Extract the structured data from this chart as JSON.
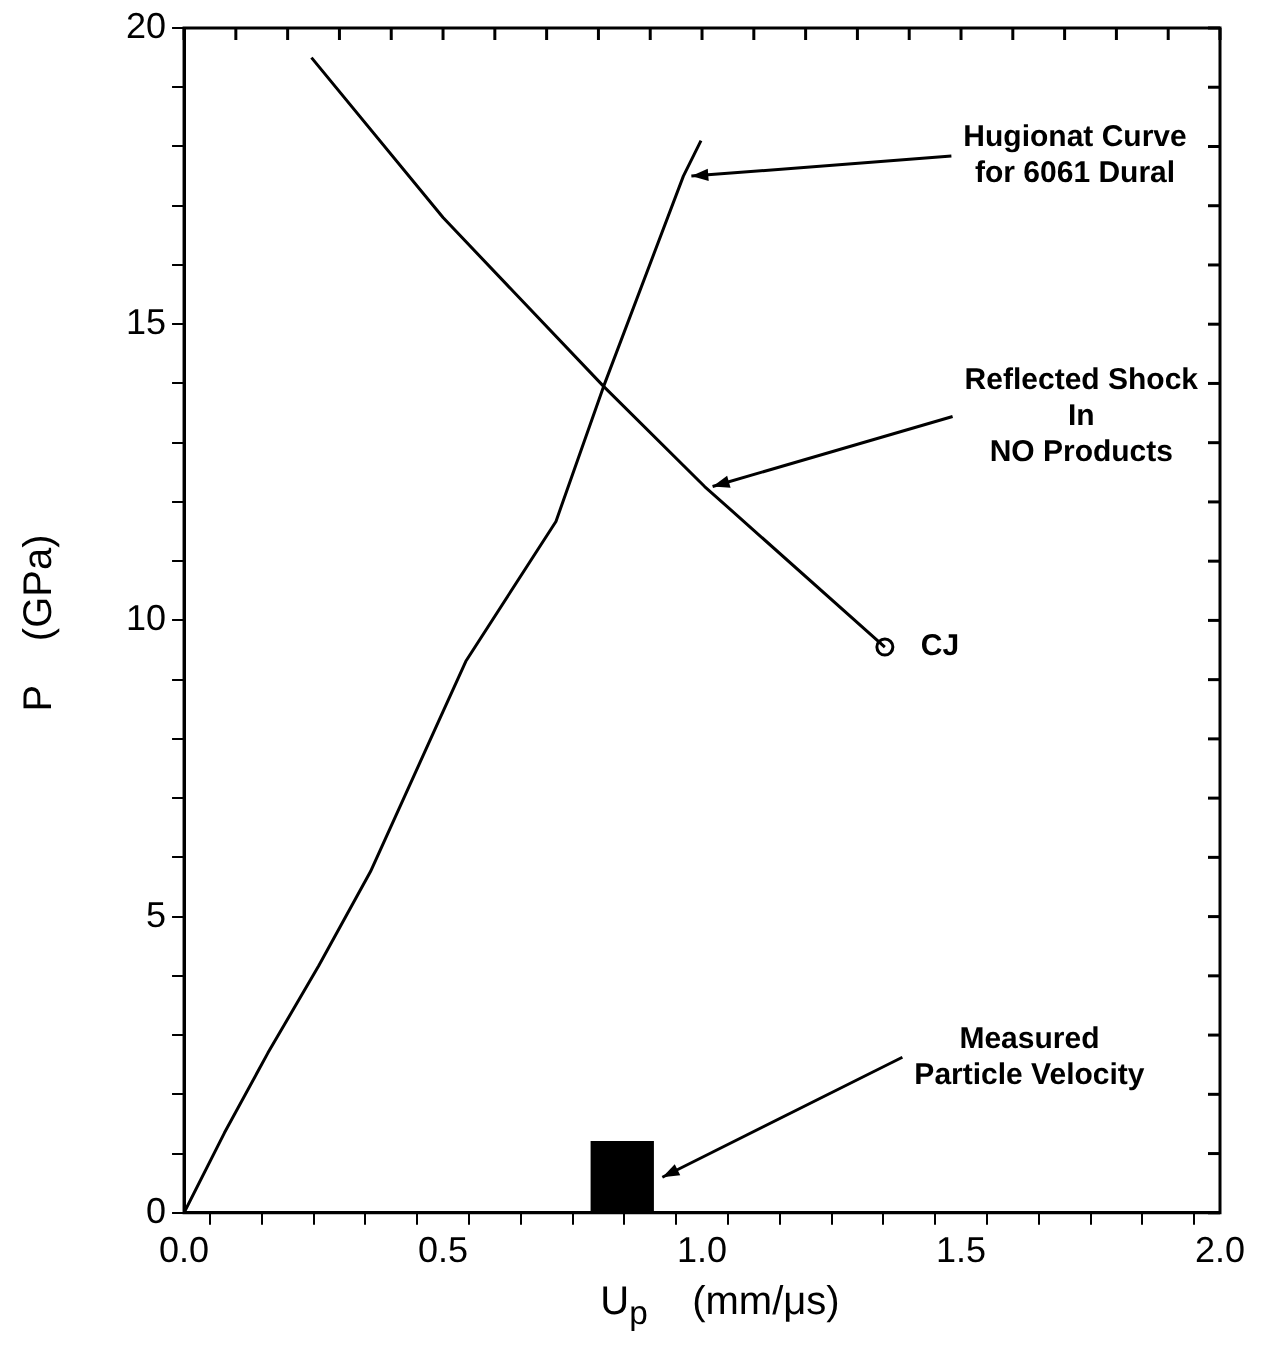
{
  "chart_data": {
    "type": "line",
    "xlabel": "U$_{p}$    (mm/μs)",
    "ylabel": "P    (GPa)",
    "xlim": [
      0,
      2
    ],
    "ylim": [
      0,
      20
    ],
    "xticks": [
      {
        "value": 0,
        "label": "0.0"
      },
      {
        "value": 0.1,
        "label": null
      },
      {
        "value": 0.2,
        "label": null
      },
      {
        "value": 0.3,
        "label": null
      },
      {
        "value": 0.4,
        "label": null
      },
      {
        "value": 0.5,
        "label": "0.5"
      },
      {
        "value": 0.6,
        "label": null
      },
      {
        "value": 0.7,
        "label": null
      },
      {
        "value": 0.8,
        "label": null
      },
      {
        "value": 0.9,
        "label": null
      },
      {
        "value": 1,
        "label": "1.0"
      },
      {
        "value": 1.1,
        "label": null
      },
      {
        "value": 1.2,
        "label": null
      },
      {
        "value": 1.3,
        "label": null
      },
      {
        "value": 1.4,
        "label": null
      },
      {
        "value": 1.5,
        "label": "1.5"
      },
      {
        "value": 1.6,
        "label": null
      },
      {
        "value": 1.7,
        "label": null
      },
      {
        "value": 1.8,
        "label": null
      },
      {
        "value": 1.9,
        "label": null
      },
      {
        "value": 2,
        "label": "2.0"
      }
    ],
    "yticks": [
      0,
      {
        "value": 1,
        "label": null
      },
      {
        "value": 2,
        "label": null
      },
      {
        "value": 3,
        "label": null
      },
      {
        "value": 4,
        "label": null
      },
      5,
      {
        "value": 6,
        "label": null
      },
      {
        "value": 7,
        "label": null
      },
      {
        "value": 8,
        "label": null
      },
      {
        "value": 9,
        "label": null
      },
      10,
      {
        "value": 11,
        "label": null
      },
      {
        "value": 12,
        "label": null
      },
      {
        "value": 13,
        "label": null
      },
      {
        "value": 14,
        "label": null
      },
      15,
      {
        "value": 16,
        "label": null
      },
      {
        "value": 17,
        "label": null
      },
      {
        "value": 18,
        "label": null
      },
      {
        "value": 19,
        "label": null
      },
      20
    ],
    "grid": false,
    "legend": false,
    "marker": "none",
    "line_style": "solid",
    "series": [
      {
        "color": "#000000",
        "x": [
          0,
          0.078,
          0.162,
          0.26,
          0.36,
          0.487,
          0.544,
          0.718,
          0.81,
          0.964,
          0.998
        ],
        "values": [
          0,
          1.35,
          2.7,
          4.17,
          5.76,
          8.21,
          9.31,
          11.67,
          13.95,
          17.5,
          18.1
        ]
      },
      {
        "color": "#000000",
        "x": [
          0.246,
          0.5,
          0.81,
          1.005,
          1.353
        ],
        "values": [
          19.5,
          16.8,
          13.95,
          12.26,
          9.55
        ]
      },
      {
        "type": "scatter",
        "marker": "circle",
        "color": "#000000",
        "x": [
          1.353
        ],
        "values": [
          9.55
        ]
      },
      {
        "type": "bar",
        "color": "#000000",
        "x": [
          0.846
        ],
        "values": [
          1.2
        ]
      }
    ],
    "annotations": [
      {
        "text": "Hugionat Curve\nfor 6061 Dural",
        "x": 0.964,
        "y": 17.5
      },
      {
        "text": "Reflected Shock\nIn\nNO Products",
        "x": 1.005,
        "y": 12.26
      },
      {
        "text": "CJ",
        "x": 1.353,
        "y": 9.55
      },
      {
        "text": "Measured\nParticle Velocity",
        "x": 0.908,
        "y": 0.6
      }
    ]
  }
}
